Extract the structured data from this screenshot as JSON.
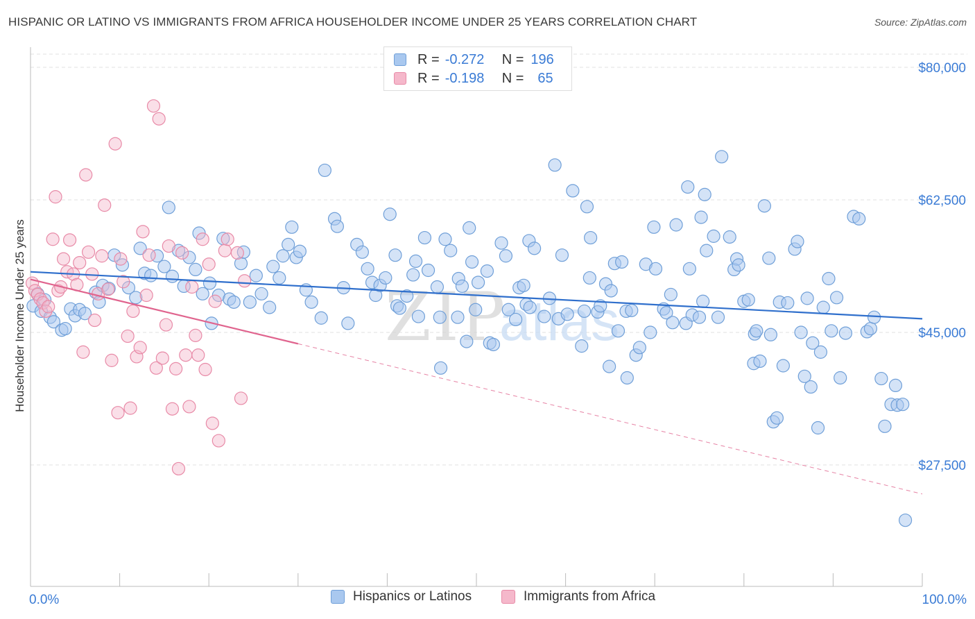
{
  "title": "HISPANIC OR LATINO VS IMMIGRANTS FROM AFRICA HOUSEHOLDER INCOME UNDER 25 YEARS CORRELATION CHART",
  "source": "Source: ZipAtlas.com",
  "watermark": {
    "zip": "ZIP",
    "atlas": "atlas"
  },
  "legend": {
    "r_label": "R =",
    "n_label": "N =",
    "rows": [
      {
        "r": "-0.272",
        "n": "196"
      },
      {
        "r": "-0.198",
        "n": "65"
      }
    ]
  },
  "colors": {
    "blue_fill": "#a9c8ef",
    "blue_stroke": "#6f9fd8",
    "blue_line": "#2f6fcc",
    "pink_fill": "#f5b8cb",
    "pink_stroke": "#e88aa7",
    "pink_line": "#e0648e",
    "tick_label": "#3a7bd5"
  },
  "chart_data": {
    "type": "scatter",
    "title": "HISPANIC OR LATINO VS IMMIGRANTS FROM AFRICA HOUSEHOLDER INCOME UNDER 25 YEARS CORRELATION CHART",
    "xlabel": "",
    "ylabel": "Householder Income Under 25 years",
    "xlim": [
      0,
      100
    ],
    "ylim": [
      12000,
      83000
    ],
    "x_tick_labels": [
      "0.0%",
      "100.0%"
    ],
    "y_ticks": [
      27500,
      45000,
      62500,
      80000
    ],
    "y_tick_labels": [
      "$27,500",
      "$45,000",
      "$62,500",
      "$80,000"
    ],
    "grid": "horizontal dashed",
    "legend_position": "bottom",
    "series": [
      {
        "name": "Hispanics or Latinos",
        "trend": {
          "x": [
            0,
            100
          ],
          "y": [
            53000,
            46800
          ]
        },
        "points": [
          [
            0.3,
            48.5
          ],
          [
            0.8,
            50.1
          ],
          [
            1.2,
            47.8
          ],
          [
            1.6,
            49.3
          ],
          [
            2.2,
            47.0
          ],
          [
            2.6,
            46.4
          ],
          [
            3.5,
            45.3
          ],
          [
            3.9,
            45.5
          ],
          [
            4.5,
            48.1
          ],
          [
            5.0,
            47.2
          ],
          [
            5.5,
            48.0
          ],
          [
            6.1,
            47.5
          ],
          [
            7.3,
            50.3
          ],
          [
            7.7,
            49.0
          ],
          [
            8.1,
            51.2
          ],
          [
            8.8,
            50.8
          ],
          [
            9.4,
            55.2
          ],
          [
            10.3,
            53.9
          ],
          [
            11.0,
            50.9
          ],
          [
            11.8,
            49.6
          ],
          [
            12.3,
            56.1
          ],
          [
            12.8,
            52.8
          ],
          [
            13.5,
            52.5
          ],
          [
            14.2,
            55.1
          ],
          [
            15.0,
            53.7
          ],
          [
            15.5,
            61.5
          ],
          [
            15.9,
            52.4
          ],
          [
            16.6,
            55.8
          ],
          [
            17.2,
            51.1
          ],
          [
            17.8,
            54.9
          ],
          [
            18.5,
            53.3
          ],
          [
            18.9,
            58.1
          ],
          [
            19.3,
            50.1
          ],
          [
            20.1,
            51.5
          ],
          [
            20.3,
            46.2
          ],
          [
            21.1,
            49.9
          ],
          [
            21.6,
            57.4
          ],
          [
            22.3,
            49.4
          ],
          [
            22.8,
            49.0
          ],
          [
            23.6,
            54.1
          ],
          [
            23.9,
            55.6
          ],
          [
            24.6,
            49.0
          ],
          [
            25.3,
            52.5
          ],
          [
            25.9,
            50.1
          ],
          [
            26.8,
            48.3
          ],
          [
            27.2,
            53.7
          ],
          [
            27.9,
            52.2
          ],
          [
            28.3,
            55.1
          ],
          [
            28.9,
            56.6
          ],
          [
            29.3,
            58.9
          ],
          [
            29.8,
            54.9
          ],
          [
            30.2,
            55.7
          ],
          [
            30.9,
            50.6
          ],
          [
            31.5,
            49.0
          ],
          [
            32.6,
            46.9
          ],
          [
            33.0,
            66.4
          ],
          [
            34.1,
            60.0
          ],
          [
            34.4,
            59.0
          ],
          [
            35.1,
            50.9
          ],
          [
            35.6,
            46.2
          ],
          [
            36.6,
            56.6
          ],
          [
            37.2,
            55.6
          ],
          [
            37.8,
            53.4
          ],
          [
            38.3,
            51.6
          ],
          [
            38.7,
            49.9
          ],
          [
            39.2,
            51.2
          ],
          [
            39.8,
            52.2
          ],
          [
            40.3,
            60.6
          ],
          [
            40.9,
            55.2
          ],
          [
            41.1,
            48.5
          ],
          [
            41.4,
            48.2
          ],
          [
            42.2,
            49.8
          ],
          [
            42.9,
            52.6
          ],
          [
            43.2,
            54.4
          ],
          [
            43.5,
            47.1
          ],
          [
            44.2,
            57.5
          ],
          [
            44.6,
            53.2
          ],
          [
            45.6,
            51.0
          ],
          [
            45.9,
            47.0
          ],
          [
            46.0,
            40.3
          ],
          [
            46.5,
            57.3
          ],
          [
            47.1,
            55.8
          ],
          [
            47.9,
            47.0
          ],
          [
            48.0,
            52.1
          ],
          [
            48.4,
            51.1
          ],
          [
            48.9,
            43.8
          ],
          [
            49.2,
            58.8
          ],
          [
            49.5,
            54.3
          ],
          [
            49.9,
            48.0
          ],
          [
            50.2,
            51.6
          ],
          [
            51.2,
            53.1
          ],
          [
            51.5,
            43.6
          ],
          [
            51.9,
            43.4
          ],
          [
            52.8,
            56.8
          ],
          [
            53.3,
            55.1
          ],
          [
            53.6,
            48.0
          ],
          [
            54.4,
            46.7
          ],
          [
            54.8,
            50.9
          ],
          [
            55.3,
            51.2
          ],
          [
            55.6,
            48.7
          ],
          [
            55.9,
            57.1
          ],
          [
            56.0,
            48.3
          ],
          [
            56.5,
            56.1
          ],
          [
            57.6,
            47.1
          ],
          [
            58.2,
            49.5
          ],
          [
            58.8,
            67.1
          ],
          [
            59.2,
            46.8
          ],
          [
            59.6,
            55.2
          ],
          [
            60.2,
            47.4
          ],
          [
            60.8,
            63.7
          ],
          [
            61.8,
            43.2
          ],
          [
            62.1,
            47.8
          ],
          [
            62.4,
            61.6
          ],
          [
            62.7,
            52.2
          ],
          [
            62.8,
            57.5
          ],
          [
            63.6,
            47.7
          ],
          [
            63.9,
            48.5
          ],
          [
            64.5,
            51.4
          ],
          [
            64.9,
            40.5
          ],
          [
            65.1,
            50.5
          ],
          [
            65.5,
            54.1
          ],
          [
            65.9,
            45.2
          ],
          [
            66.3,
            54.3
          ],
          [
            66.8,
            47.8
          ],
          [
            66.9,
            39.0
          ],
          [
            67.4,
            47.9
          ],
          [
            67.9,
            42.0
          ],
          [
            68.3,
            43.0
          ],
          [
            69.0,
            54.0
          ],
          [
            69.5,
            45.0
          ],
          [
            69.9,
            58.9
          ],
          [
            70.1,
            53.4
          ],
          [
            71.0,
            48.1
          ],
          [
            71.3,
            47.6
          ],
          [
            71.8,
            50.0
          ],
          [
            72.0,
            46.3
          ],
          [
            72.4,
            59.2
          ],
          [
            73.5,
            46.2
          ],
          [
            73.7,
            64.2
          ],
          [
            73.9,
            53.4
          ],
          [
            74.2,
            47.3
          ],
          [
            75.0,
            47.0
          ],
          [
            75.2,
            60.2
          ],
          [
            75.4,
            49.1
          ],
          [
            75.6,
            63.2
          ],
          [
            75.8,
            55.8
          ],
          [
            76.6,
            57.7
          ],
          [
            77.1,
            47.0
          ],
          [
            77.5,
            68.2
          ],
          [
            78.4,
            57.6
          ],
          [
            78.9,
            53.3
          ],
          [
            79.2,
            54.7
          ],
          [
            79.4,
            53.9
          ],
          [
            80.0,
            49.1
          ],
          [
            80.5,
            49.3
          ],
          [
            81.1,
            40.9
          ],
          [
            81.2,
            44.8
          ],
          [
            81.4,
            45.2
          ],
          [
            81.8,
            41.2
          ],
          [
            82.3,
            61.7
          ],
          [
            82.8,
            54.8
          ],
          [
            83.0,
            44.7
          ],
          [
            83.3,
            33.2
          ],
          [
            83.7,
            33.7
          ],
          [
            84.0,
            49.0
          ],
          [
            84.4,
            40.6
          ],
          [
            84.9,
            48.9
          ],
          [
            85.7,
            56.0
          ],
          [
            86.0,
            57.0
          ],
          [
            86.4,
            45.0
          ],
          [
            86.8,
            39.2
          ],
          [
            87.1,
            49.5
          ],
          [
            87.5,
            37.8
          ],
          [
            87.7,
            43.6
          ],
          [
            88.3,
            32.4
          ],
          [
            88.6,
            42.4
          ],
          [
            88.9,
            48.3
          ],
          [
            89.5,
            52.1
          ],
          [
            89.8,
            45.2
          ],
          [
            90.4,
            49.6
          ],
          [
            90.8,
            39.0
          ],
          [
            91.4,
            44.9
          ],
          [
            92.3,
            60.3
          ],
          [
            92.9,
            60.0
          ],
          [
            93.8,
            45.1
          ],
          [
            94.2,
            45.5
          ],
          [
            94.6,
            47.0
          ],
          [
            95.4,
            38.9
          ],
          [
            95.8,
            32.6
          ],
          [
            96.5,
            35.5
          ],
          [
            97.0,
            38.0
          ],
          [
            97.2,
            35.4
          ],
          [
            97.8,
            35.5
          ],
          [
            98.1,
            20.2
          ]
        ]
      },
      {
        "name": "Immigrants from Africa",
        "trend": {
          "x": [
            0,
            30
          ],
          "y": [
            52000,
            43500
          ]
        },
        "points": [
          [
            0.2,
            51.5
          ],
          [
            0.5,
            50.5
          ],
          [
            0.8,
            50.0
          ],
          [
            1.1,
            49.4
          ],
          [
            1.4,
            48.9
          ],
          [
            1.7,
            47.8
          ],
          [
            2.0,
            48.4
          ],
          [
            2.5,
            57.3
          ],
          [
            2.8,
            62.9
          ],
          [
            3.1,
            50.5
          ],
          [
            3.4,
            51.0
          ],
          [
            3.7,
            54.7
          ],
          [
            4.1,
            53.0
          ],
          [
            4.4,
            57.2
          ],
          [
            4.8,
            52.7
          ],
          [
            5.2,
            51.3
          ],
          [
            5.5,
            54.2
          ],
          [
            5.9,
            42.4
          ],
          [
            6.2,
            65.8
          ],
          [
            6.5,
            55.6
          ],
          [
            6.9,
            52.7
          ],
          [
            7.2,
            46.6
          ],
          [
            7.6,
            50.1
          ],
          [
            8.0,
            55.1
          ],
          [
            8.3,
            61.8
          ],
          [
            8.7,
            50.7
          ],
          [
            9.1,
            41.3
          ],
          [
            9.5,
            69.9
          ],
          [
            9.8,
            34.4
          ],
          [
            10.1,
            54.7
          ],
          [
            10.4,
            51.7
          ],
          [
            10.9,
            44.5
          ],
          [
            11.2,
            35.0
          ],
          [
            11.5,
            47.8
          ],
          [
            11.9,
            41.8
          ],
          [
            12.3,
            43.0
          ],
          [
            12.6,
            58.3
          ],
          [
            13.0,
            49.9
          ],
          [
            13.3,
            55.2
          ],
          [
            13.8,
            74.9
          ],
          [
            14.1,
            40.3
          ],
          [
            14.4,
            73.2
          ],
          [
            14.8,
            41.6
          ],
          [
            15.2,
            46.0
          ],
          [
            15.5,
            56.4
          ],
          [
            15.9,
            34.9
          ],
          [
            16.3,
            40.2
          ],
          [
            16.6,
            27.0
          ],
          [
            17.0,
            55.5
          ],
          [
            17.4,
            42.0
          ],
          [
            17.8,
            35.2
          ],
          [
            18.1,
            51.0
          ],
          [
            18.5,
            44.6
          ],
          [
            18.8,
            42.0
          ],
          [
            19.3,
            57.3
          ],
          [
            19.6,
            40.1
          ],
          [
            20.0,
            54.0
          ],
          [
            20.4,
            33.0
          ],
          [
            20.7,
            49.1
          ],
          [
            21.1,
            30.7
          ],
          [
            21.8,
            55.8
          ],
          [
            22.1,
            57.3
          ],
          [
            23.2,
            55.5
          ],
          [
            23.6,
            36.3
          ],
          [
            24.0,
            51.8
          ]
        ]
      }
    ]
  }
}
